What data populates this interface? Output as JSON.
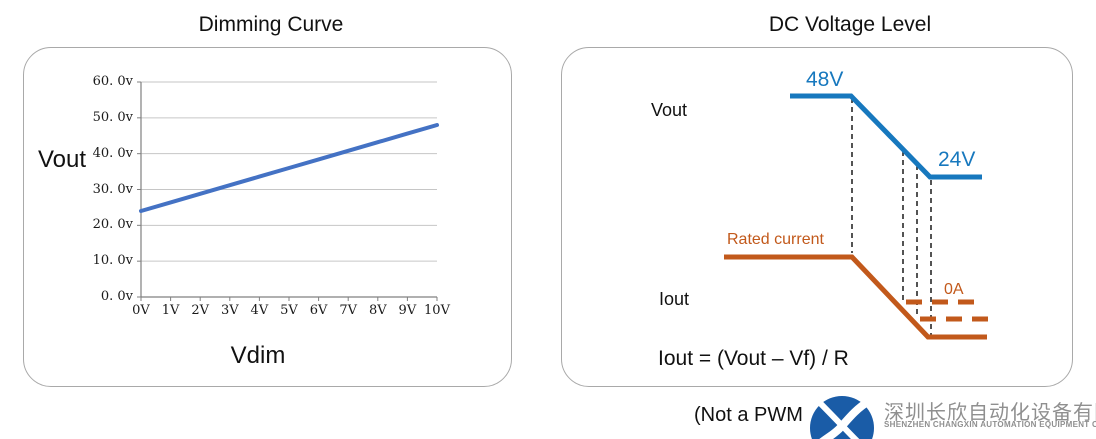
{
  "right_panel": {
    "vout_label": "Vout",
    "iout_label": "Iout"
  },
  "footer": {
    "note": "(Not a PWM",
    "company_name_cn": "深圳长欣自动化设备有限公司",
    "company_name_en": "SHENZHEN CHANGXIN AUTOMATION EQUIPMENT CO. LTD"
  },
  "colors": {
    "dimming_line": "#4472C4",
    "vout_trace": "#1778BE",
    "iout_trace": "#C2591B",
    "dashed_guide": "#1a1a1a",
    "logo_blue": "#1A5CA7",
    "company_text_gray": "#8F8F8F",
    "panel_border": "#A9A9A9"
  },
  "chart_data": [
    {
      "type": "line",
      "title": "Dimming Curve",
      "xlabel": "Vdim",
      "ylabel": "Vout",
      "x": [
        0,
        1,
        2,
        3,
        4,
        5,
        6,
        7,
        8,
        9,
        10
      ],
      "values": [
        24,
        26.4,
        28.8,
        31.2,
        33.6,
        36,
        38.4,
        40.8,
        43.2,
        45.6,
        48
      ],
      "xlim": [
        0,
        10
      ],
      "ylim": [
        0,
        60
      ],
      "xtick_labels": [
        "0V",
        "1V",
        "2V",
        "3V",
        "4V",
        "5V",
        "6V",
        "7V",
        "8V",
        "9V",
        "10V"
      ],
      "ytick_labels": [
        "0. 0v",
        "10. 0v",
        "20. 0v",
        "30. 0v",
        "40. 0v",
        "50. 0v",
        "60. 0v"
      ],
      "grid": true,
      "legend": false,
      "line_color": "#4472C4"
    },
    {
      "type": "line",
      "title": "DC Voltage Level",
      "description": "Conceptual level diagram: Vout steps down from 48V to 24V; Iout falls from rated current toward 0A in step with Vout; dashed guides link Vout levels to Iout levels",
      "series": [
        {
          "name": "Vout",
          "start_level": "48V",
          "end_level": "24V",
          "color": "#1778BE"
        },
        {
          "name": "Iout",
          "start_level": "Rated current",
          "end_level": "0A",
          "color": "#C2591B"
        }
      ],
      "annotation": "Iout = (Vout – Vf) / R"
    }
  ]
}
